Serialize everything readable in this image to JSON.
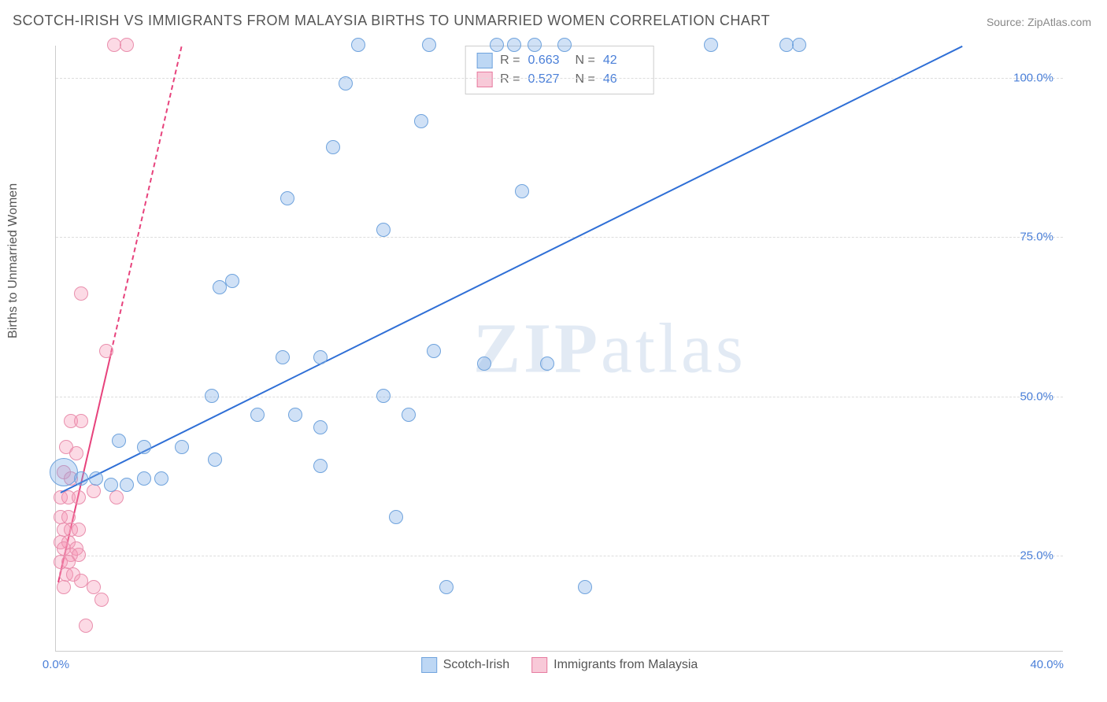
{
  "title": "SCOTCH-IRISH VS IMMIGRANTS FROM MALAYSIA BIRTHS TO UNMARRIED WOMEN CORRELATION CHART",
  "source_label": "Source: ",
  "source_name": "ZipAtlas.com",
  "y_axis_label": "Births to Unmarried Women",
  "watermark_a": "ZIP",
  "watermark_b": "atlas",
  "chart": {
    "type": "scatter",
    "xlim": [
      0,
      40
    ],
    "ylim": [
      10,
      105
    ],
    "x_ticks": [
      0,
      40
    ],
    "x_tick_labels": [
      "0.0%",
      "40.0%"
    ],
    "y_ticks": [
      25,
      50,
      75,
      100
    ],
    "y_tick_labels": [
      "25.0%",
      "50.0%",
      "75.0%",
      "100.0%"
    ],
    "background_color": "#ffffff",
    "grid_color": "#dddddd",
    "marker_radius": 9,
    "marker_stroke_width": 1.5,
    "series": [
      {
        "name": "Scotch-Irish",
        "fill": "rgba(120,170,230,0.35)",
        "stroke": "#6fa3dd",
        "swatch_fill": "#bdd7f4",
        "swatch_border": "#6fa3dd",
        "trend_color": "#2f6fd6",
        "trend": {
          "x1": 0.2,
          "y1": 35,
          "x2": 36,
          "y2": 105
        },
        "trend_dash": null,
        "stats": {
          "R": "0.663",
          "N": "42"
        },
        "points": [
          {
            "x": 12.0,
            "y": 105,
            "r": 9
          },
          {
            "x": 14.8,
            "y": 105,
            "r": 9
          },
          {
            "x": 17.5,
            "y": 105,
            "r": 9
          },
          {
            "x": 18.2,
            "y": 105,
            "r": 9
          },
          {
            "x": 19.0,
            "y": 105,
            "r": 9
          },
          {
            "x": 20.2,
            "y": 105,
            "r": 9
          },
          {
            "x": 26.0,
            "y": 105,
            "r": 9
          },
          {
            "x": 29.0,
            "y": 105,
            "r": 9
          },
          {
            "x": 29.5,
            "y": 105,
            "r": 9
          },
          {
            "x": 11.5,
            "y": 99,
            "r": 9
          },
          {
            "x": 14.5,
            "y": 93,
            "r": 9
          },
          {
            "x": 11.0,
            "y": 89,
            "r": 9
          },
          {
            "x": 9.2,
            "y": 81,
            "r": 9
          },
          {
            "x": 18.5,
            "y": 82,
            "r": 9
          },
          {
            "x": 13.0,
            "y": 76,
            "r": 9
          },
          {
            "x": 6.5,
            "y": 67,
            "r": 9
          },
          {
            "x": 7.0,
            "y": 68,
            "r": 9
          },
          {
            "x": 9.0,
            "y": 56,
            "r": 9
          },
          {
            "x": 10.5,
            "y": 56,
            "r": 9
          },
          {
            "x": 15.0,
            "y": 57,
            "r": 9
          },
          {
            "x": 17.0,
            "y": 55,
            "r": 9
          },
          {
            "x": 19.5,
            "y": 55,
            "r": 9
          },
          {
            "x": 6.2,
            "y": 50,
            "r": 9
          },
          {
            "x": 13.0,
            "y": 50,
            "r": 9
          },
          {
            "x": 8.0,
            "y": 47,
            "r": 9
          },
          {
            "x": 9.5,
            "y": 47,
            "r": 9
          },
          {
            "x": 10.5,
            "y": 45,
            "r": 9
          },
          {
            "x": 14.0,
            "y": 47,
            "r": 9
          },
          {
            "x": 2.5,
            "y": 43,
            "r": 9
          },
          {
            "x": 3.5,
            "y": 42,
            "r": 9
          },
          {
            "x": 5.0,
            "y": 42,
            "r": 9
          },
          {
            "x": 6.3,
            "y": 40,
            "r": 9
          },
          {
            "x": 10.5,
            "y": 39,
            "r": 9
          },
          {
            "x": 0.3,
            "y": 38,
            "r": 18
          },
          {
            "x": 1.0,
            "y": 37,
            "r": 9
          },
          {
            "x": 1.6,
            "y": 37,
            "r": 9
          },
          {
            "x": 2.2,
            "y": 36,
            "r": 9
          },
          {
            "x": 2.8,
            "y": 36,
            "r": 9
          },
          {
            "x": 3.5,
            "y": 37,
            "r": 9
          },
          {
            "x": 4.2,
            "y": 37,
            "r": 9
          },
          {
            "x": 13.5,
            "y": 31,
            "r": 9
          },
          {
            "x": 15.5,
            "y": 20,
            "r": 9
          },
          {
            "x": 21.0,
            "y": 20,
            "r": 9
          }
        ]
      },
      {
        "name": "Immigrants from Malaysia",
        "fill": "rgba(245,150,180,0.35)",
        "stroke": "#e98fad",
        "swatch_fill": "#f8c9d8",
        "swatch_border": "#e77ba0",
        "trend_color": "#e7427c",
        "trend": {
          "x1": 0.1,
          "y1": 21,
          "x2": 2.2,
          "y2": 57
        },
        "trend_dash": {
          "x1": 2.2,
          "y1": 57,
          "x2": 5.0,
          "y2": 105
        },
        "stats": {
          "R": "0.527",
          "N": "46"
        },
        "points": [
          {
            "x": 2.3,
            "y": 105,
            "r": 9
          },
          {
            "x": 2.8,
            "y": 105,
            "r": 9
          },
          {
            "x": 1.0,
            "y": 66,
            "r": 9
          },
          {
            "x": 2.0,
            "y": 57,
            "r": 9
          },
          {
            "x": 0.6,
            "y": 46,
            "r": 9
          },
          {
            "x": 1.0,
            "y": 46,
            "r": 9
          },
          {
            "x": 0.4,
            "y": 42,
            "r": 9
          },
          {
            "x": 0.8,
            "y": 41,
            "r": 9
          },
          {
            "x": 0.3,
            "y": 38,
            "r": 9
          },
          {
            "x": 0.6,
            "y": 37,
            "r": 9
          },
          {
            "x": 0.2,
            "y": 34,
            "r": 9
          },
          {
            "x": 0.5,
            "y": 34,
            "r": 9
          },
          {
            "x": 0.9,
            "y": 34,
            "r": 9
          },
          {
            "x": 1.5,
            "y": 35,
            "r": 9
          },
          {
            "x": 2.4,
            "y": 34,
            "r": 9
          },
          {
            "x": 0.2,
            "y": 31,
            "r": 9
          },
          {
            "x": 0.5,
            "y": 31,
            "r": 9
          },
          {
            "x": 0.3,
            "y": 29,
            "r": 9
          },
          {
            "x": 0.6,
            "y": 29,
            "r": 9
          },
          {
            "x": 0.9,
            "y": 29,
            "r": 9
          },
          {
            "x": 0.2,
            "y": 27,
            "r": 9
          },
          {
            "x": 0.5,
            "y": 27,
            "r": 9
          },
          {
            "x": 0.8,
            "y": 26,
            "r": 9
          },
          {
            "x": 0.3,
            "y": 26,
            "r": 9
          },
          {
            "x": 0.6,
            "y": 25,
            "r": 9
          },
          {
            "x": 0.9,
            "y": 25,
            "r": 9
          },
          {
            "x": 0.2,
            "y": 24,
            "r": 9
          },
          {
            "x": 0.5,
            "y": 24,
            "r": 9
          },
          {
            "x": 0.4,
            "y": 22,
            "r": 9
          },
          {
            "x": 0.7,
            "y": 22,
            "r": 9
          },
          {
            "x": 1.0,
            "y": 21,
            "r": 9
          },
          {
            "x": 1.5,
            "y": 20,
            "r": 9
          },
          {
            "x": 0.3,
            "y": 20,
            "r": 9
          },
          {
            "x": 1.8,
            "y": 18,
            "r": 9
          },
          {
            "x": 1.2,
            "y": 14,
            "r": 9
          }
        ]
      }
    ]
  },
  "stats_labels": {
    "R": "R =",
    "N": "N ="
  },
  "bottom_legend": [
    "Scotch-Irish",
    "Immigrants from Malaysia"
  ]
}
